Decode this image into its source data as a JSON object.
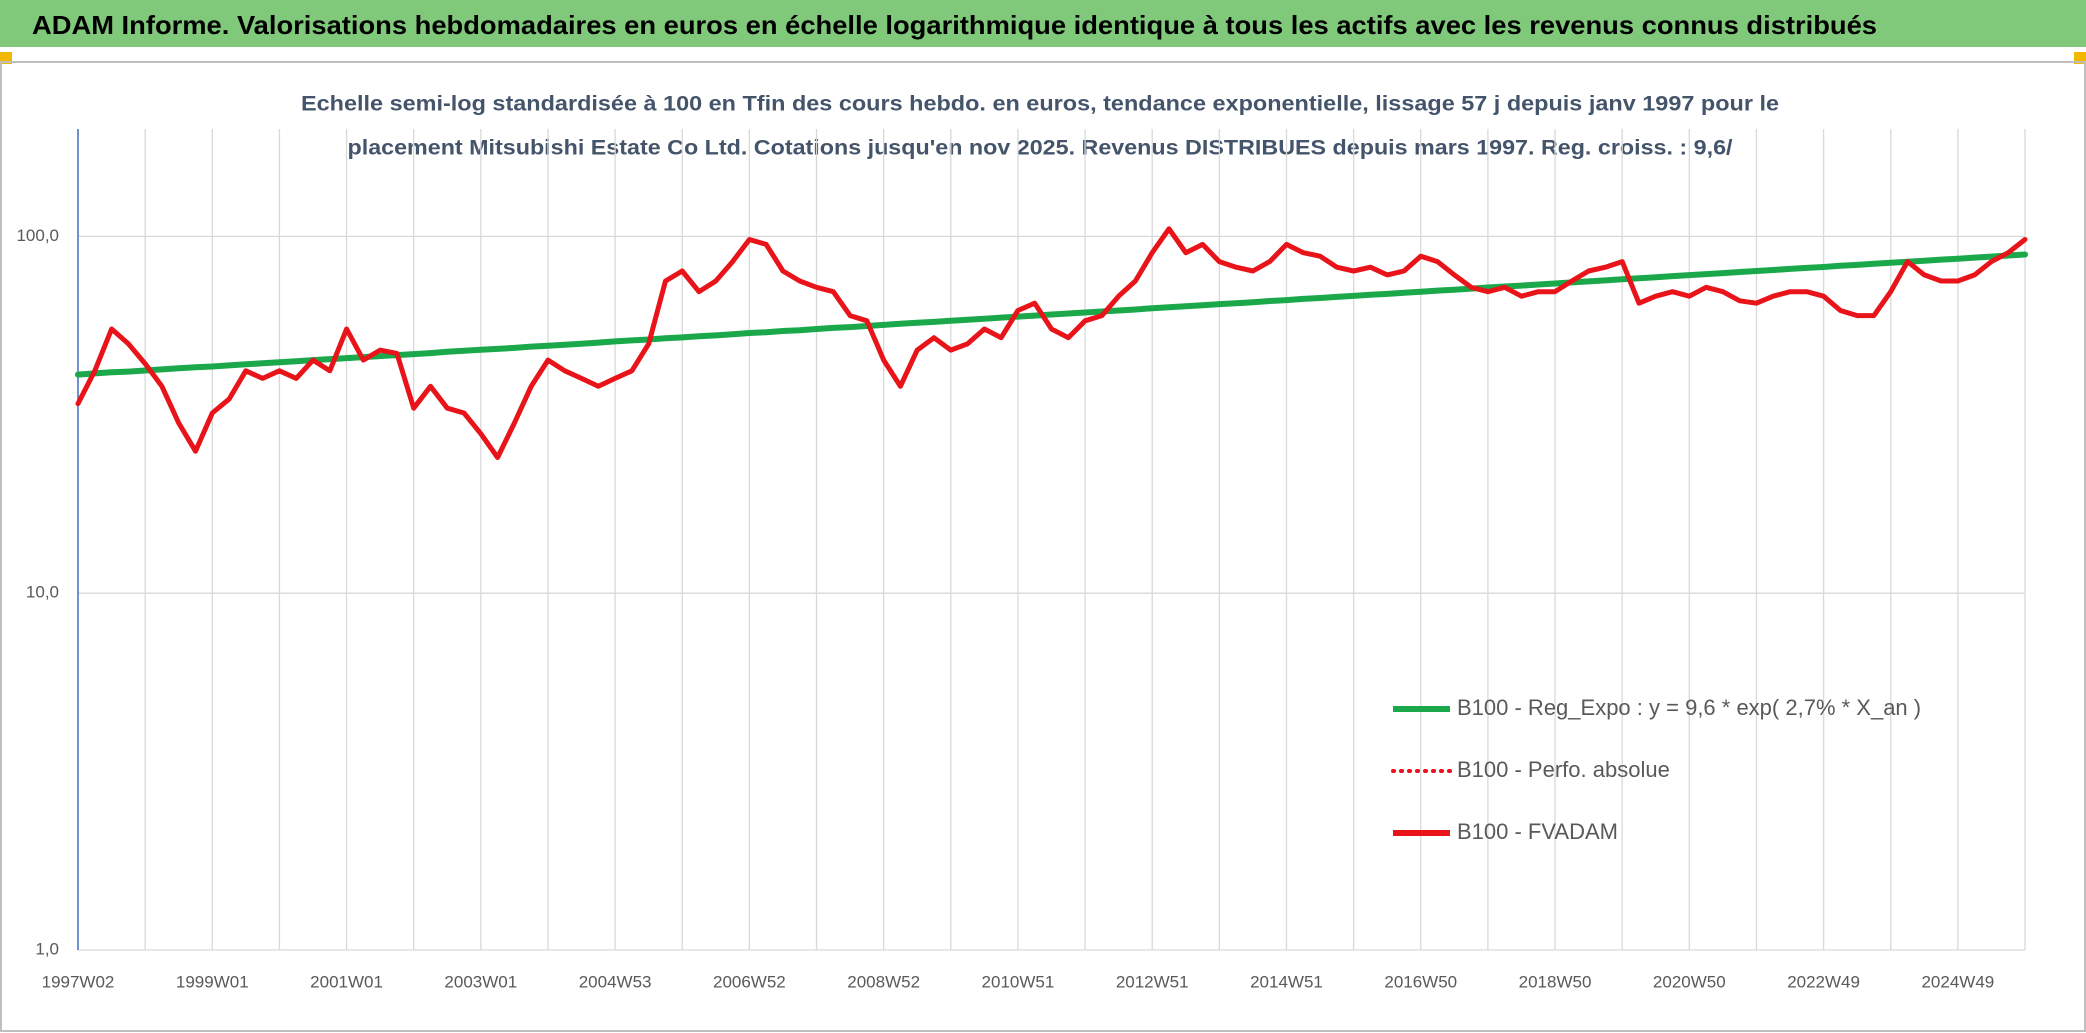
{
  "chart_data": {
    "type": "line",
    "title": "ADAM Informe. Valorisations hebdomadaires en euros en échelle logarithmique identique à tous les actifs avec les revenus connus distribués",
    "subtitle": [
      "Echelle semi-log standardisée à 100 en Tfin des cours hebdo. en euros, tendance exponentielle, lissage 57 j depuis janv 1997 pour le",
      "placement Mitsubishi Estate Co Ltd. Cotations jusqu'en nov 2025. Revenus DISTRIBUES depuis mars 1997. Reg. croiss. : 9,6/"
    ],
    "ylog": true,
    "grid": true,
    "ylim": [
      1,
      200
    ],
    "yticks": [
      {
        "value": 1,
        "label": "1,0"
      },
      {
        "value": 10,
        "label": "10,0"
      },
      {
        "value": 100,
        "label": "100,0"
      }
    ],
    "categories": [
      "1997W02",
      null,
      null,
      null,
      null,
      null,
      null,
      null,
      "1999W01",
      null,
      null,
      null,
      null,
      null,
      null,
      null,
      "2001W01",
      null,
      null,
      null,
      null,
      null,
      null,
      null,
      "2003W01",
      null,
      null,
      null,
      null,
      null,
      null,
      null,
      "2004W53",
      null,
      null,
      null,
      null,
      null,
      null,
      null,
      "2006W52",
      null,
      null,
      null,
      null,
      null,
      null,
      null,
      "2008W52",
      null,
      null,
      null,
      null,
      null,
      null,
      null,
      "2010W51",
      null,
      null,
      null,
      null,
      null,
      null,
      null,
      "2012W51",
      null,
      null,
      null,
      null,
      null,
      null,
      null,
      "2014W51",
      null,
      null,
      null,
      null,
      null,
      null,
      null,
      "2016W50",
      null,
      null,
      null,
      null,
      null,
      null,
      null,
      "2018W50",
      null,
      null,
      null,
      null,
      null,
      null,
      null,
      "2020W50",
      null,
      null,
      null,
      null,
      null,
      null,
      null,
      "2022W49",
      null,
      null,
      null,
      null,
      null,
      null,
      null,
      "2024W49",
      null,
      null,
      null,
      null
    ],
    "series": [
      {
        "name": "B100 - Reg_Expo : y = 9,6 * exp( 2,7% *  X_an )",
        "color": "#1aa84a",
        "width": 6,
        "dash": false,
        "values": [
          41.0,
          41.3,
          41.6,
          41.8,
          42.1,
          42.4,
          42.7,
          43.0,
          43.2,
          43.5,
          43.8,
          44.1,
          44.4,
          44.7,
          45.0,
          45.3,
          45.6,
          45.9,
          46.2,
          46.5,
          46.8,
          47.1,
          47.5,
          47.8,
          48.1,
          48.4,
          48.7,
          49.1,
          49.4,
          49.7,
          50.0,
          50.4,
          50.8,
          51.1,
          51.4,
          51.8,
          52.1,
          52.5,
          52.8,
          53.2,
          53.6,
          53.9,
          54.3,
          54.6,
          55.0,
          55.4,
          55.7,
          56.1,
          56.5,
          56.9,
          57.3,
          57.6,
          58.0,
          58.4,
          58.8,
          59.2,
          59.6,
          60.0,
          60.4,
          60.8,
          61.2,
          61.6,
          62.0,
          62.4,
          62.9,
          63.3,
          63.7,
          64.1,
          64.6,
          65.0,
          65.4,
          65.9,
          66.3,
          66.8,
          67.2,
          67.7,
          68.1,
          68.6,
          69.0,
          69.5,
          70.0,
          70.5,
          70.9,
          71.4,
          71.9,
          72.4,
          72.8,
          73.3,
          73.8,
          74.3,
          74.8,
          75.3,
          75.8,
          76.3,
          76.8,
          77.4,
          77.9,
          78.4,
          78.9,
          79.5,
          80.0,
          80.5,
          81.1,
          81.6,
          82.1,
          82.7,
          83.2,
          83.8,
          84.4,
          84.9,
          85.5,
          86.1,
          86.6,
          87.2,
          87.8,
          88.4,
          89.0
        ]
      },
      {
        "name": "B100 - Perfo. absolue",
        "color": "#e8141a",
        "width": 4,
        "dash": true,
        "values": [
          34,
          42,
          55,
          50,
          44,
          38,
          30,
          25,
          32,
          35,
          42,
          40,
          42,
          40,
          45,
          42,
          55,
          45,
          48,
          47,
          33,
          38,
          33,
          32,
          28,
          24,
          30,
          38,
          45,
          42,
          40,
          38,
          40,
          42,
          50,
          75,
          80,
          70,
          75,
          85,
          98,
          95,
          80,
          75,
          72,
          70,
          60,
          58,
          45,
          38,
          48,
          52,
          48,
          50,
          55,
          52,
          62,
          65,
          55,
          52,
          58,
          60,
          68,
          75,
          90,
          105,
          90,
          95,
          85,
          82,
          80,
          85,
          95,
          90,
          88,
          82,
          80,
          82,
          78,
          80,
          88,
          85,
          78,
          72,
          70,
          72,
          68,
          70,
          70,
          75,
          80,
          82,
          85,
          65,
          68,
          70,
          68,
          72,
          70,
          66,
          65,
          68,
          70,
          70,
          68,
          62,
          60,
          60,
          70,
          85,
          78,
          75,
          75,
          78,
          85,
          90,
          98
        ]
      },
      {
        "name": "B100 - FVADAM",
        "color": "#e8141a",
        "width": 5,
        "dash": false,
        "values": [
          34,
          42,
          55,
          50,
          44,
          38,
          30,
          25,
          32,
          35,
          42,
          40,
          42,
          40,
          45,
          42,
          55,
          45,
          48,
          47,
          33,
          38,
          33,
          32,
          28,
          24,
          30,
          38,
          45,
          42,
          40,
          38,
          40,
          42,
          50,
          75,
          80,
          70,
          75,
          85,
          98,
          95,
          80,
          75,
          72,
          70,
          60,
          58,
          45,
          38,
          48,
          52,
          48,
          50,
          55,
          52,
          62,
          65,
          55,
          52,
          58,
          60,
          68,
          75,
          90,
          105,
          90,
          95,
          85,
          82,
          80,
          85,
          95,
          90,
          88,
          82,
          80,
          82,
          78,
          80,
          88,
          85,
          78,
          72,
          70,
          72,
          68,
          70,
          70,
          75,
          80,
          82,
          85,
          65,
          68,
          70,
          68,
          72,
          70,
          66,
          65,
          68,
          70,
          70,
          68,
          62,
          60,
          60,
          70,
          85,
          78,
          75,
          75,
          78,
          85,
          90,
          98
        ]
      }
    ]
  }
}
